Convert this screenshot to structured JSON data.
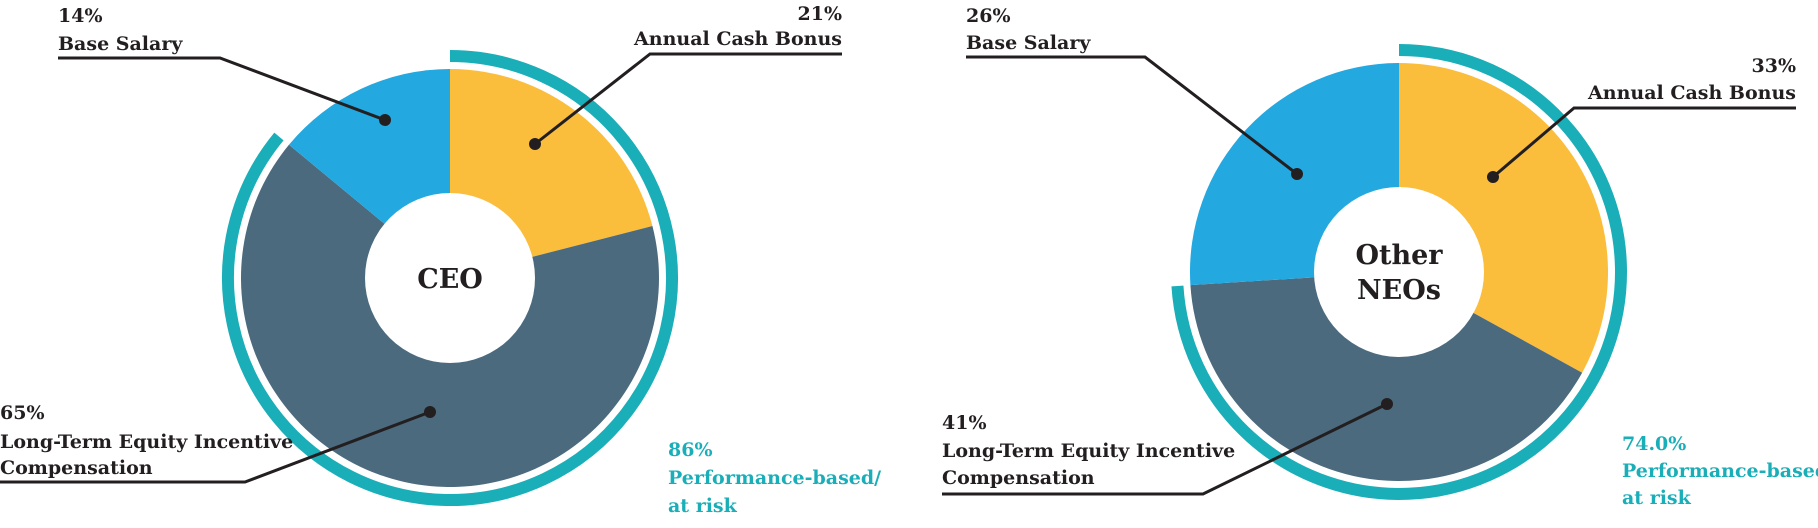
{
  "colors": {
    "base_salary": "#23a8e0",
    "annual_cash_bonus": "#fbbd3c",
    "ltei": "#4c6a7e",
    "performance_arc": "#1aaeb8",
    "leader": "#231f20"
  },
  "chart_data": [
    {
      "type": "pie",
      "title": "CEO",
      "series": [
        {
          "name": "Base Salary",
          "value": 14,
          "label": "14%"
        },
        {
          "name": "Annual Cash Bonus",
          "value": 21,
          "label": "21%"
        },
        {
          "name": "Long-Term Equity Incentive Compensation",
          "value": 65,
          "label": "65%"
        }
      ],
      "performance": {
        "label": "86%",
        "text": "Performance-based/",
        "text2": "at risk",
        "value": 86
      }
    },
    {
      "type": "pie",
      "title": "Other NEOs",
      "title_lines": [
        "Other",
        "NEOs"
      ],
      "series": [
        {
          "name": "Base Salary",
          "value": 26,
          "label": "26%"
        },
        {
          "name": "Annual Cash Bonus",
          "value": 33,
          "label": "33%"
        },
        {
          "name": "Long-Term Equity Incentive Compensation",
          "value": 41,
          "label": "41%"
        }
      ],
      "performance": {
        "label": "74.0%",
        "text": "Performance-based/",
        "text2": "at risk",
        "value": 74
      }
    }
  ],
  "labels": {
    "ltei_line1": "Long-Term Equity Incentive",
    "ltei_line2": "Compensation"
  }
}
